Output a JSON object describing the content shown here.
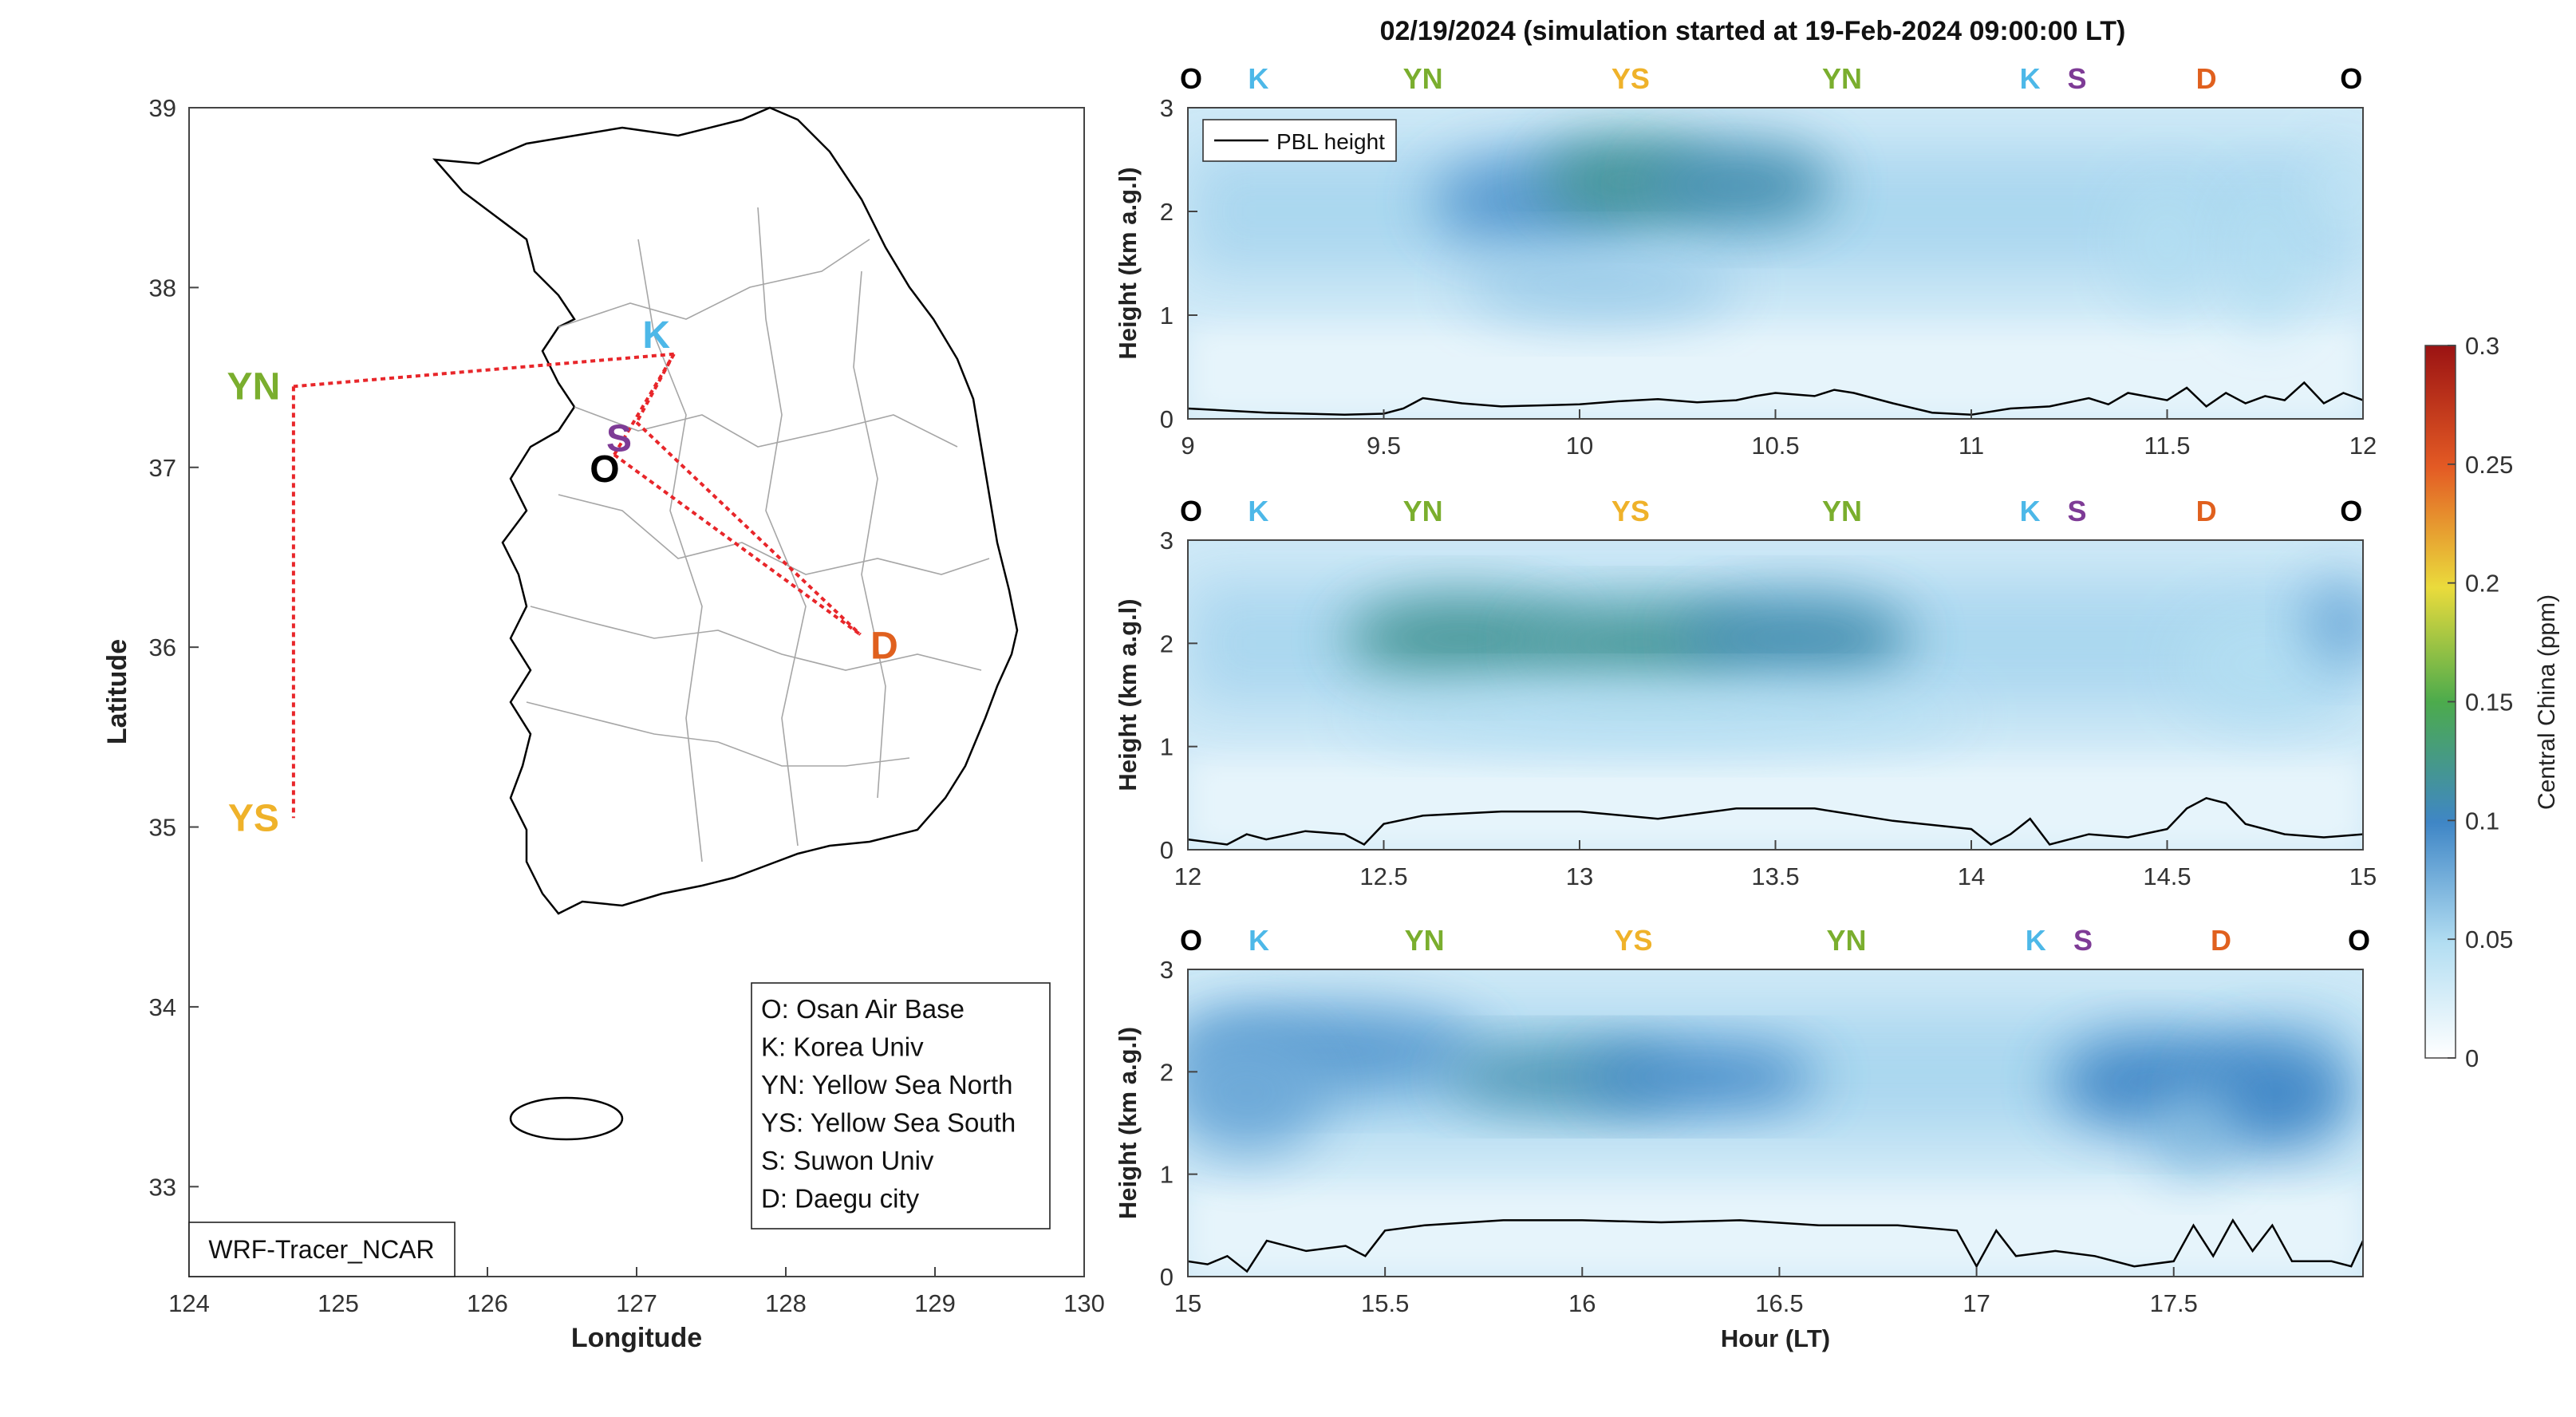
{
  "figure_title": "02/19/2024 (simulation started at 19-Feb-2024 09:00:00 LT)",
  "colors": {
    "O": "#000000",
    "K": "#4db8e8",
    "YN": "#7aae2e",
    "YS": "#efb22a",
    "S": "#7e3b96",
    "D": "#e0601e",
    "route": "#e8262a",
    "pbl": "#000000"
  },
  "icons": [
    "legend-line-icon"
  ],
  "chart_data": [
    {
      "type": "map",
      "xlabel": "Longitude",
      "ylabel": "Latitude",
      "xlim": [
        124,
        130
      ],
      "ylim": [
        32.5,
        39
      ],
      "xticks": [
        124,
        125,
        126,
        127,
        128,
        129,
        130
      ],
      "yticks": [
        33,
        34,
        35,
        36,
        37,
        38,
        39
      ],
      "grid": false,
      "stamp": "WRF-Tracer_NCAR",
      "sites": [
        {
          "code": "O",
          "lon": 126.85,
          "lat": 37.07
        },
        {
          "code": "K",
          "lon": 127.25,
          "lat": 37.63
        },
        {
          "code": "YN",
          "lon": 124.7,
          "lat": 37.45
        },
        {
          "code": "YS",
          "lon": 124.7,
          "lat": 35.05
        },
        {
          "code": "S",
          "lon": 127.0,
          "lat": 37.25
        },
        {
          "code": "D",
          "lon": 128.5,
          "lat": 36.07
        }
      ],
      "legend_entries": [
        "O: Osan Air Base",
        "K: Korea Univ",
        "YN: Yellow Sea North",
        "YS: Yellow Sea South",
        "S: Suwon Univ",
        "D: Daegu city"
      ],
      "legend_position": "bottom-right"
    },
    {
      "type": "heatmap",
      "xlim": [
        9,
        12
      ],
      "xticks": [
        9,
        9.5,
        10,
        10.5,
        11,
        11.5,
        12
      ],
      "ylim": [
        0,
        3
      ],
      "yticks": [
        0,
        1,
        2,
        3
      ],
      "ylabel": "Height (km a.g.l)",
      "xlabel": "",
      "colorbar_label": "Central China (ppm)",
      "clim": [
        0,
        0.3
      ],
      "site_markers": [
        {
          "code": "O",
          "x": 9.0
        },
        {
          "code": "K",
          "x": 9.18
        },
        {
          "code": "YN",
          "x": 9.6
        },
        {
          "code": "YS",
          "x": 10.13
        },
        {
          "code": "YN",
          "x": 10.67
        },
        {
          "code": "K",
          "x": 11.15
        },
        {
          "code": "S",
          "x": 11.27
        },
        {
          "code": "D",
          "x": 11.6
        },
        {
          "code": "O",
          "x": 11.97
        }
      ],
      "pbl_height": {
        "x": [
          9.0,
          9.1,
          9.2,
          9.3,
          9.4,
          9.5,
          9.55,
          9.6,
          9.7,
          9.8,
          9.9,
          10.0,
          10.1,
          10.2,
          10.3,
          10.4,
          10.45,
          10.5,
          10.6,
          10.65,
          10.7,
          10.8,
          10.9,
          11.0,
          11.1,
          11.2,
          11.3,
          11.35,
          11.4,
          11.5,
          11.55,
          11.6,
          11.65,
          11.7,
          11.75,
          11.8,
          11.85,
          11.9,
          11.95,
          12.0
        ],
        "y": [
          0.1,
          0.08,
          0.06,
          0.05,
          0.04,
          0.05,
          0.1,
          0.2,
          0.15,
          0.12,
          0.13,
          0.14,
          0.17,
          0.19,
          0.16,
          0.18,
          0.22,
          0.25,
          0.22,
          0.28,
          0.25,
          0.15,
          0.06,
          0.04,
          0.1,
          0.12,
          0.2,
          0.14,
          0.25,
          0.18,
          0.3,
          0.12,
          0.25,
          0.15,
          0.22,
          0.18,
          0.35,
          0.15,
          0.25,
          0.18
        ]
      },
      "plumes": [
        {
          "x": 9.9,
          "y": 2.1,
          "w": 0.28,
          "h": 0.9,
          "v": 0.09
        },
        {
          "x": 10.12,
          "y": 2.3,
          "w": 0.22,
          "h": 0.8,
          "v": 0.12
        },
        {
          "x": 10.4,
          "y": 2.25,
          "w": 0.25,
          "h": 0.8,
          "v": 0.11
        },
        {
          "x": 10.05,
          "y": 1.3,
          "w": 0.35,
          "h": 0.7,
          "v": 0.06
        },
        {
          "x": 11.5,
          "y": 1.7,
          "w": 0.12,
          "h": 1.2,
          "v": 0.05
        },
        {
          "x": 11.75,
          "y": 1.6,
          "w": 0.1,
          "h": 1.4,
          "v": 0.05
        },
        {
          "x": 11.95,
          "y": 2.2,
          "w": 0.08,
          "h": 0.8,
          "v": 0.04
        }
      ],
      "legend": "PBL height",
      "legend_position": "top-left"
    },
    {
      "type": "heatmap",
      "xlim": [
        12,
        15
      ],
      "xticks": [
        12,
        12.5,
        13,
        13.5,
        14,
        14.5,
        15
      ],
      "ylim": [
        0,
        3
      ],
      "yticks": [
        0,
        1,
        2,
        3
      ],
      "ylabel": "Height (km a.g.l)",
      "xlabel": "",
      "site_markers": [
        {
          "code": "O",
          "x": 12.0
        },
        {
          "code": "K",
          "x": 12.18
        },
        {
          "code": "YN",
          "x": 12.6
        },
        {
          "code": "YS",
          "x": 13.13
        },
        {
          "code": "YN",
          "x": 13.67
        },
        {
          "code": "K",
          "x": 14.15
        },
        {
          "code": "S",
          "x": 14.27
        },
        {
          "code": "D",
          "x": 14.6
        },
        {
          "code": "O",
          "x": 14.97
        }
      ],
      "pbl_height": {
        "x": [
          12.0,
          12.1,
          12.15,
          12.2,
          12.3,
          12.4,
          12.45,
          12.5,
          12.6,
          12.8,
          13.0,
          13.2,
          13.4,
          13.6,
          13.8,
          14.0,
          14.05,
          14.1,
          14.15,
          14.2,
          14.3,
          14.4,
          14.5,
          14.55,
          14.6,
          14.65,
          14.7,
          14.8,
          14.9,
          15.0
        ],
        "y": [
          0.1,
          0.05,
          0.15,
          0.1,
          0.18,
          0.15,
          0.05,
          0.25,
          0.33,
          0.37,
          0.37,
          0.3,
          0.4,
          0.4,
          0.28,
          0.2,
          0.05,
          0.15,
          0.3,
          0.05,
          0.15,
          0.12,
          0.2,
          0.4,
          0.5,
          0.45,
          0.25,
          0.15,
          0.12,
          0.15
        ]
      },
      "plumes": [
        {
          "x": 12.7,
          "y": 2.05,
          "w": 0.3,
          "h": 0.8,
          "v": 0.12
        },
        {
          "x": 13.15,
          "y": 2.0,
          "w": 0.3,
          "h": 0.75,
          "v": 0.12
        },
        {
          "x": 13.55,
          "y": 2.05,
          "w": 0.3,
          "h": 0.8,
          "v": 0.11
        },
        {
          "x": 13.2,
          "y": 1.3,
          "w": 0.8,
          "h": 0.6,
          "v": 0.05
        },
        {
          "x": 14.75,
          "y": 1.8,
          "w": 0.22,
          "h": 1.1,
          "v": 0.05
        },
        {
          "x": 14.95,
          "y": 2.2,
          "w": 0.1,
          "h": 0.8,
          "v": 0.08
        }
      ]
    },
    {
      "type": "heatmap",
      "xlim": [
        15,
        17.98
      ],
      "xticks": [
        15,
        15.5,
        16,
        16.5,
        17,
        17.5
      ],
      "ylim": [
        0,
        3
      ],
      "yticks": [
        0,
        1,
        2,
        3
      ],
      "ylabel": "Height (km a.g.l)",
      "xlabel": "Hour (LT)",
      "site_markers": [
        {
          "code": "O",
          "x": 15.0
        },
        {
          "code": "K",
          "x": 15.18
        },
        {
          "code": "YN",
          "x": 15.6
        },
        {
          "code": "YS",
          "x": 16.13
        },
        {
          "code": "YN",
          "x": 16.67
        },
        {
          "code": "K",
          "x": 17.15
        },
        {
          "code": "S",
          "x": 17.27
        },
        {
          "code": "D",
          "x": 17.62
        },
        {
          "code": "O",
          "x": 17.97
        }
      ],
      "pbl_height": {
        "x": [
          15.0,
          15.05,
          15.1,
          15.15,
          15.2,
          15.3,
          15.4,
          15.45,
          15.5,
          15.6,
          15.8,
          16.0,
          16.2,
          16.4,
          16.6,
          16.8,
          16.95,
          17.0,
          17.05,
          17.1,
          17.2,
          17.3,
          17.4,
          17.5,
          17.55,
          17.6,
          17.65,
          17.7,
          17.75,
          17.8,
          17.9,
          17.95,
          17.98
        ],
        "y": [
          0.15,
          0.12,
          0.2,
          0.05,
          0.35,
          0.25,
          0.3,
          0.2,
          0.45,
          0.5,
          0.55,
          0.55,
          0.53,
          0.55,
          0.5,
          0.5,
          0.45,
          0.1,
          0.45,
          0.2,
          0.25,
          0.2,
          0.1,
          0.15,
          0.5,
          0.2,
          0.55,
          0.25,
          0.5,
          0.15,
          0.15,
          0.1,
          0.35
        ]
      },
      "plumes": [
        {
          "x": 15.35,
          "y": 2.2,
          "w": 0.4,
          "h": 0.8,
          "v": 0.09
        },
        {
          "x": 15.95,
          "y": 1.95,
          "w": 0.3,
          "h": 0.6,
          "v": 0.11
        },
        {
          "x": 16.3,
          "y": 1.95,
          "w": 0.3,
          "h": 0.6,
          "v": 0.1
        },
        {
          "x": 15.15,
          "y": 1.8,
          "w": 0.2,
          "h": 1.2,
          "v": 0.08
        },
        {
          "x": 17.45,
          "y": 1.9,
          "w": 0.25,
          "h": 0.9,
          "v": 0.1
        },
        {
          "x": 17.75,
          "y": 1.8,
          "w": 0.2,
          "h": 1.1,
          "v": 0.1
        },
        {
          "x": 17.55,
          "y": 1.4,
          "w": 0.1,
          "h": 0.8,
          "v": 0.07
        }
      ]
    }
  ],
  "colorbar": {
    "label": "Central China (ppm)",
    "ticks": [
      0,
      0.05,
      0.1,
      0.15,
      0.2,
      0.25,
      0.3
    ],
    "tick_labels": [
      "0",
      "0.05",
      "0.1",
      "0.15",
      "0.2",
      "0.25",
      "0.3"
    ],
    "colors": [
      "#ffffff",
      "#b3def2",
      "#3f86c6",
      "#4cab4c",
      "#eadb3c",
      "#e35a24",
      "#9b1313"
    ]
  }
}
